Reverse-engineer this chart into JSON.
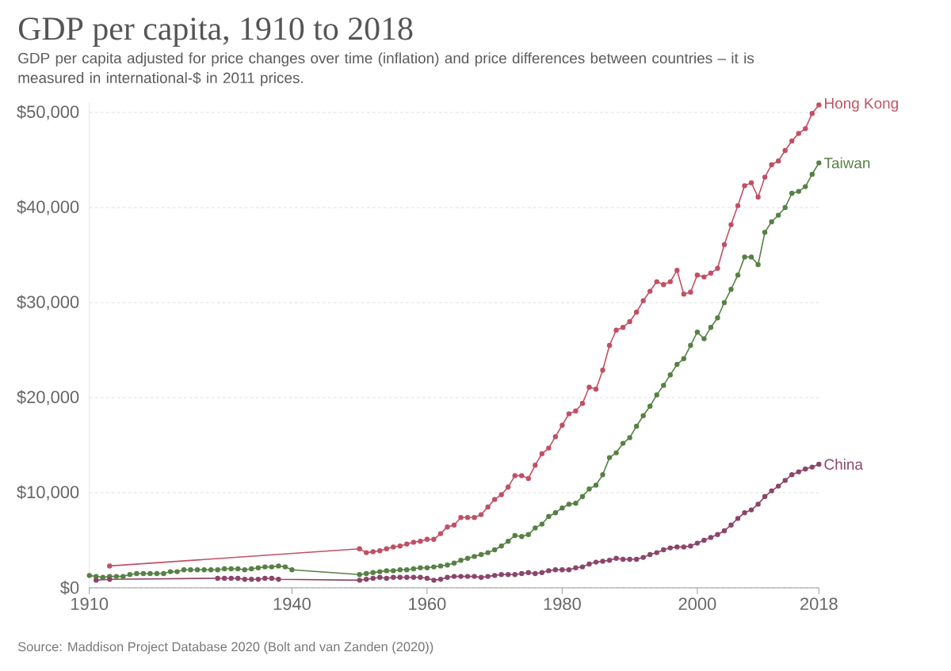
{
  "chart_data": {
    "type": "line",
    "title": "GDP per capita, 1910 to 2018",
    "subtitle": "GDP per capita adjusted for price changes over time (inflation) and price differences between countries – it is measured in international-$ in 2011 prices.",
    "annotations": [
      "Source: Maddison Project Database 2020 (Bolt and van Zanden (2020))"
    ],
    "xlim": [
      1910,
      2018
    ],
    "xticks": [
      1910,
      1940,
      1960,
      1980,
      2000,
      2018
    ],
    "ylim": [
      0,
      51000
    ],
    "yticks": [
      {
        "value": 0,
        "label": "$0"
      },
      {
        "value": 10000,
        "label": "$10,000"
      },
      {
        "value": 20000,
        "label": "$20,000"
      },
      {
        "value": 30000,
        "label": "$30,000"
      },
      {
        "value": 40000,
        "label": "$40,000"
      },
      {
        "value": 50000,
        "label": "$50,000"
      }
    ],
    "grid": "y",
    "marker": "circle",
    "series": [
      {
        "name": "Hong Kong",
        "color": "#c15065",
        "x": [
          1913,
          1950,
          1951,
          1952,
          1953,
          1954,
          1955,
          1956,
          1957,
          1958,
          1959,
          1960,
          1961,
          1962,
          1963,
          1964,
          1965,
          1966,
          1967,
          1968,
          1969,
          1970,
          1971,
          1972,
          1973,
          1974,
          1975,
          1976,
          1977,
          1978,
          1979,
          1980,
          1981,
          1982,
          1983,
          1984,
          1985,
          1986,
          1987,
          1988,
          1989,
          1990,
          1991,
          1992,
          1993,
          1994,
          1995,
          1996,
          1997,
          1998,
          1999,
          2000,
          2001,
          2002,
          2003,
          2004,
          2005,
          2006,
          2007,
          2008,
          2009,
          2010,
          2011,
          2012,
          2013,
          2014,
          2015,
          2016,
          2017,
          2018
        ],
        "values": [
          2300,
          4100,
          3700,
          3800,
          3900,
          4100,
          4300,
          4400,
          4600,
          4800,
          4900,
          5100,
          5100,
          5700,
          6400,
          6600,
          7400,
          7400,
          7400,
          7700,
          8500,
          9300,
          9800,
          10600,
          11800,
          11800,
          11500,
          12900,
          14100,
          14700,
          15900,
          17100,
          18300,
          18600,
          19400,
          21100,
          20900,
          22900,
          25500,
          27100,
          27400,
          28000,
          29000,
          30200,
          31200,
          32200,
          31900,
          32200,
          33400,
          30900,
          31100,
          32900,
          32700,
          33100,
          33600,
          36100,
          38200,
          40200,
          42300,
          42600,
          41100,
          43200,
          44500,
          44900,
          46000,
          47000,
          47800,
          48300,
          49900,
          50800
        ]
      },
      {
        "name": "Taiwan",
        "color": "#578145",
        "x": [
          1910,
          1911,
          1912,
          1913,
          1914,
          1915,
          1916,
          1917,
          1918,
          1919,
          1920,
          1921,
          1922,
          1923,
          1924,
          1925,
          1926,
          1927,
          1928,
          1929,
          1930,
          1931,
          1932,
          1933,
          1934,
          1935,
          1936,
          1937,
          1938,
          1939,
          1940,
          1950,
          1951,
          1952,
          1953,
          1954,
          1955,
          1956,
          1957,
          1958,
          1959,
          1960,
          1961,
          1962,
          1963,
          1964,
          1965,
          1966,
          1967,
          1968,
          1969,
          1970,
          1971,
          1972,
          1973,
          1974,
          1975,
          1976,
          1977,
          1978,
          1979,
          1980,
          1981,
          1982,
          1983,
          1984,
          1985,
          1986,
          1987,
          1988,
          1989,
          1990,
          1991,
          1992,
          1993,
          1994,
          1995,
          1996,
          1997,
          1998,
          1999,
          2000,
          2001,
          2002,
          2003,
          2004,
          2005,
          2006,
          2007,
          2008,
          2009,
          2010,
          2011,
          2012,
          2013,
          2014,
          2015,
          2016,
          2017,
          2018
        ],
        "values": [
          1300,
          1200,
          1100,
          1200,
          1200,
          1200,
          1400,
          1500,
          1500,
          1500,
          1500,
          1500,
          1700,
          1700,
          1900,
          1900,
          1900,
          1900,
          1900,
          1900,
          2000,
          2000,
          2000,
          1900,
          2000,
          2100,
          2200,
          2200,
          2300,
          2200,
          1900,
          1400,
          1500,
          1600,
          1700,
          1800,
          1800,
          1900,
          1900,
          2000,
          2100,
          2100,
          2200,
          2300,
          2400,
          2600,
          2900,
          3100,
          3300,
          3500,
          3700,
          4000,
          4400,
          4900,
          5500,
          5400,
          5600,
          6300,
          6700,
          7500,
          7900,
          8400,
          8800,
          8900,
          9600,
          10400,
          10800,
          11900,
          13700,
          14200,
          15200,
          15800,
          17000,
          18100,
          19100,
          20300,
          21300,
          22400,
          23500,
          24100,
          25500,
          26900,
          26200,
          27400,
          28400,
          30000,
          31400,
          32900,
          34800,
          34800,
          34000,
          37400,
          38500,
          39200,
          40000,
          41500,
          41700,
          42200,
          43500,
          44700
        ]
      },
      {
        "name": "China",
        "color": "#8c4569",
        "x": [
          1911,
          1913,
          1929,
          1930,
          1931,
          1932,
          1933,
          1934,
          1935,
          1936,
          1937,
          1938,
          1950,
          1951,
          1952,
          1953,
          1954,
          1955,
          1956,
          1957,
          1958,
          1959,
          1960,
          1961,
          1962,
          1963,
          1964,
          1965,
          1966,
          1967,
          1968,
          1969,
          1970,
          1971,
          1972,
          1973,
          1974,
          1975,
          1976,
          1977,
          1978,
          1979,
          1980,
          1981,
          1982,
          1983,
          1984,
          1985,
          1986,
          1987,
          1988,
          1989,
          1990,
          1991,
          1992,
          1993,
          1994,
          1995,
          1996,
          1997,
          1998,
          1999,
          2000,
          2001,
          2002,
          2003,
          2004,
          2005,
          2006,
          2007,
          2008,
          2009,
          2010,
          2011,
          2012,
          2013,
          2014,
          2015,
          2016,
          2017,
          2018
        ],
        "values": [
          800,
          900,
          1000,
          1000,
          1000,
          1000,
          900,
          900,
          900,
          1000,
          1000,
          900,
          800,
          900,
          1000,
          1100,
          1000,
          1100,
          1100,
          1100,
          1100,
          1100,
          1000,
          800,
          900,
          1100,
          1200,
          1200,
          1200,
          1200,
          1100,
          1200,
          1300,
          1400,
          1400,
          1400,
          1500,
          1600,
          1500,
          1600,
          1800,
          1900,
          1900,
          1900,
          2100,
          2200,
          2500,
          2700,
          2800,
          2900,
          3100,
          3000,
          3000,
          3000,
          3200,
          3500,
          3700,
          4000,
          4200,
          4300,
          4300,
          4400,
          4700,
          5000,
          5300,
          5600,
          6000,
          6600,
          7300,
          7900,
          8200,
          8800,
          9600,
          10200,
          10700,
          11300,
          11900,
          12200,
          12500,
          12700,
          13000
        ]
      }
    ]
  }
}
